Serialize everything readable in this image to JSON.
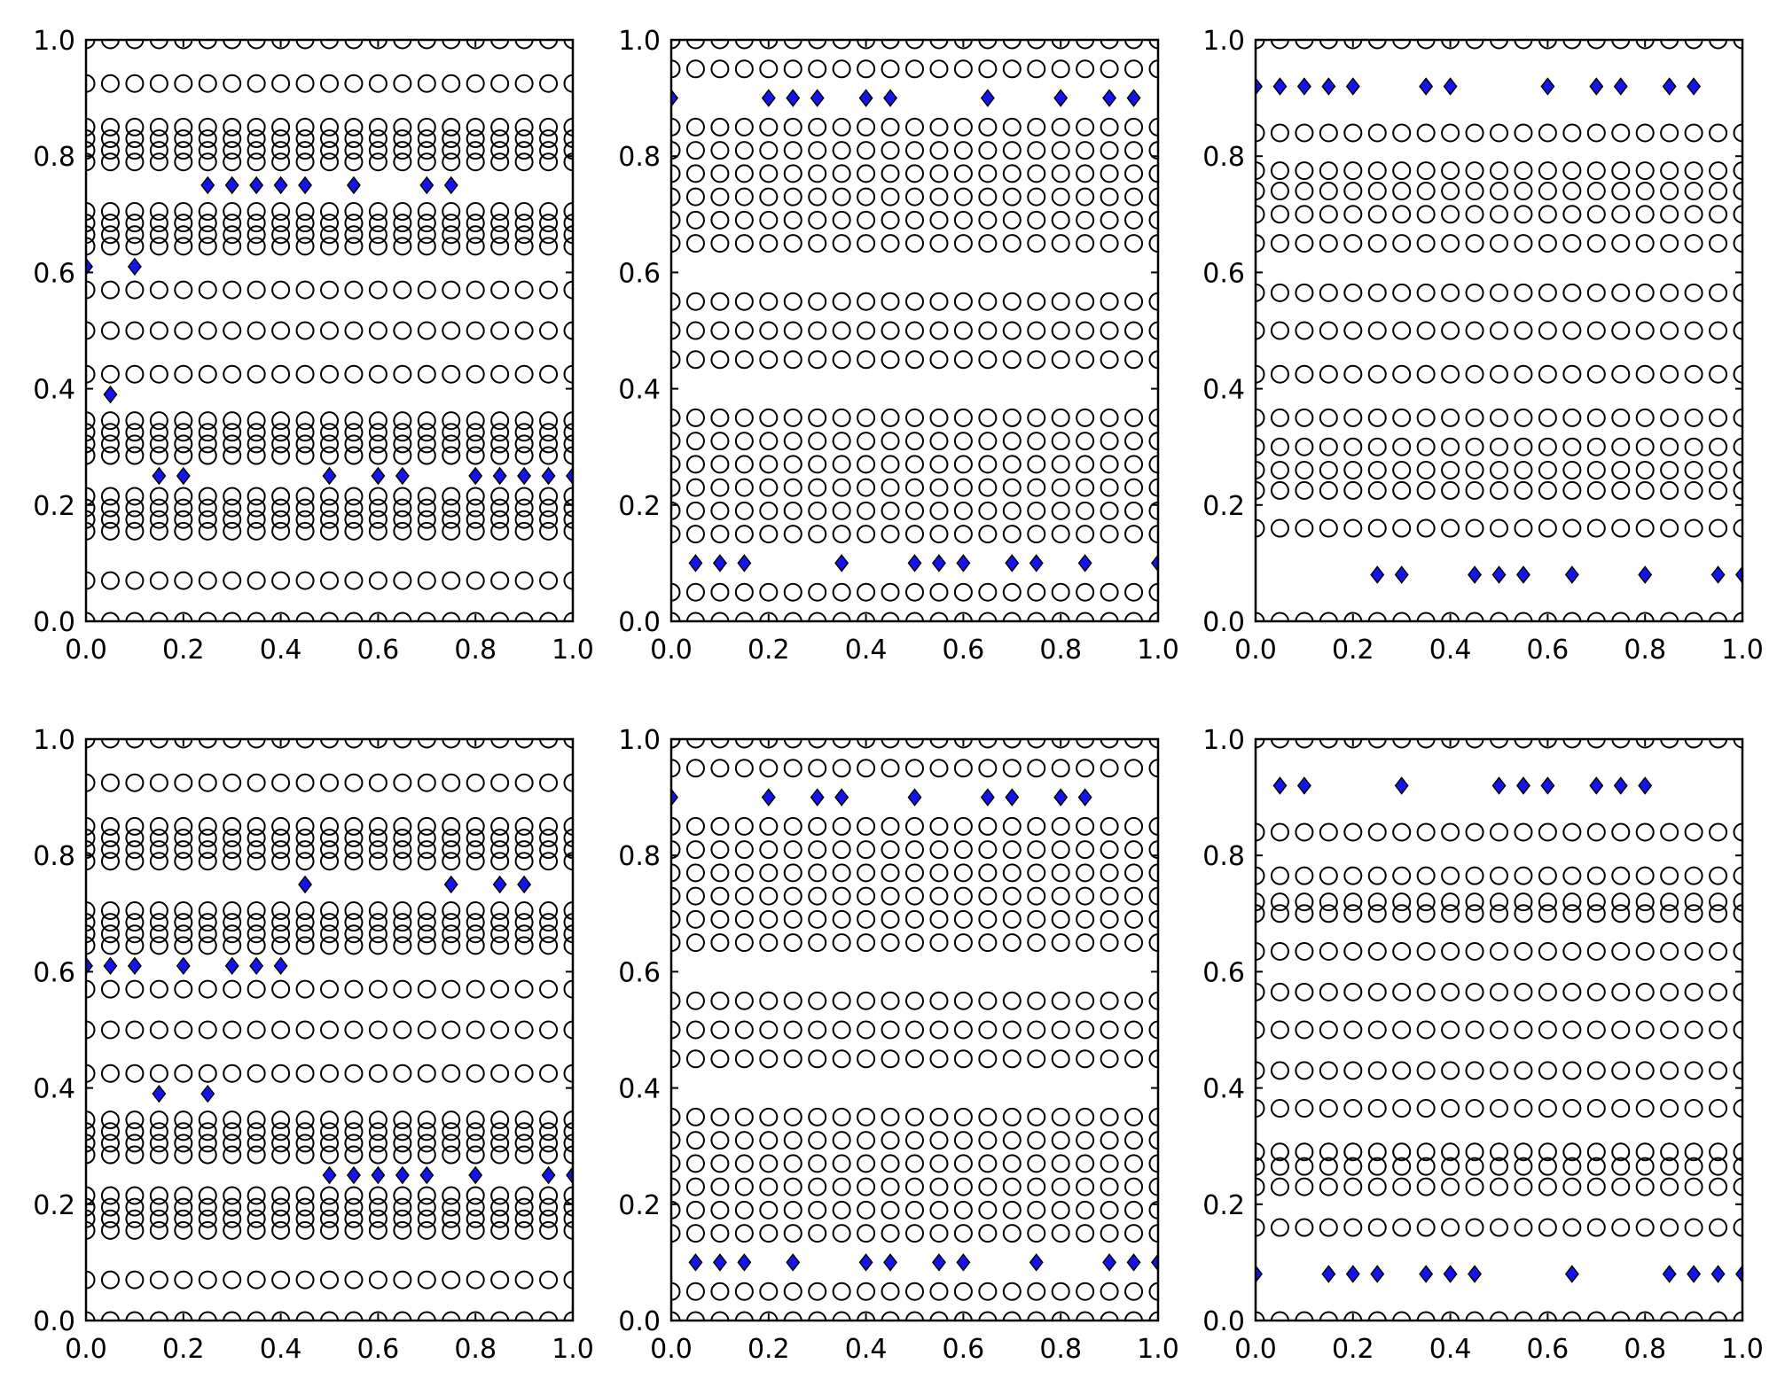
{
  "colors": {
    "diamond_fill": "#1414F0",
    "marker_stroke": "#000000",
    "background": "#FFFFFF"
  },
  "chart_data": [
    {
      "type": "scatter",
      "panel": "row1-col1",
      "xlim": [
        0,
        1
      ],
      "ylim": [
        0,
        1
      ],
      "xticks": [
        "0.0",
        "0.2",
        "0.4",
        "0.6",
        "0.8",
        "1.0"
      ],
      "yticks": [
        "0.0",
        "0.2",
        "0.4",
        "0.6",
        "0.8",
        "1.0"
      ],
      "circle_rows": [
        0.0,
        0.07,
        0.155,
        0.175,
        0.195,
        0.215,
        0.285,
        0.305,
        0.325,
        0.345,
        0.425,
        0.5,
        0.57,
        0.645,
        0.665,
        0.685,
        0.705,
        0.79,
        0.81,
        0.83,
        0.85,
        0.925,
        1.0
      ],
      "diamonds": [
        {
          "y": 0.75,
          "x": [
            0.25,
            0.3,
            0.35,
            0.4,
            0.45,
            0.55,
            0.7,
            0.75
          ]
        },
        {
          "y": 0.61,
          "x": [
            0.0,
            0.1
          ]
        },
        {
          "y": 0.39,
          "x": [
            0.05
          ]
        },
        {
          "y": 0.25,
          "x": [
            0.15,
            0.2,
            0.5,
            0.6,
            0.65,
            0.8,
            0.85,
            0.9,
            0.95,
            1.0
          ]
        }
      ]
    },
    {
      "type": "scatter",
      "panel": "row1-col2",
      "xlim": [
        0,
        1
      ],
      "ylim": [
        0,
        1
      ],
      "xticks": [
        "0.0",
        "0.2",
        "0.4",
        "0.6",
        "0.8",
        "1.0"
      ],
      "yticks": [
        "0.0",
        "0.2",
        "0.4",
        "0.6",
        "0.8",
        "1.0"
      ],
      "circle_rows": [
        0.0,
        0.05,
        0.15,
        0.19,
        0.23,
        0.27,
        0.31,
        0.35,
        0.45,
        0.5,
        0.55,
        0.65,
        0.69,
        0.73,
        0.77,
        0.81,
        0.85,
        0.95,
        1.0
      ],
      "diamonds": [
        {
          "y": 0.9,
          "x": [
            0.0,
            0.2,
            0.25,
            0.3,
            0.4,
            0.45,
            0.65,
            0.8,
            0.9,
            0.95
          ]
        },
        {
          "y": 0.1,
          "x": [
            0.05,
            0.1,
            0.15,
            0.35,
            0.5,
            0.55,
            0.6,
            0.7,
            0.75,
            0.85,
            1.0
          ]
        }
      ]
    },
    {
      "type": "scatter",
      "panel": "row1-col3",
      "xlim": [
        0,
        1
      ],
      "ylim": [
        0,
        1
      ],
      "xticks": [
        "0.0",
        "0.2",
        "0.4",
        "0.6",
        "0.8",
        "1.0"
      ],
      "yticks": [
        "0.0",
        "0.2",
        "0.4",
        "0.6",
        "0.8",
        "1.0"
      ],
      "circle_rows": [
        0.0,
        0.16,
        0.225,
        0.26,
        0.3,
        0.35,
        0.425,
        0.5,
        0.565,
        0.65,
        0.7,
        0.74,
        0.775,
        0.84,
        1.0
      ],
      "diamonds": [
        {
          "y": 0.92,
          "x": [
            0.0,
            0.05,
            0.1,
            0.15,
            0.2,
            0.35,
            0.4,
            0.6,
            0.7,
            0.75,
            0.85,
            0.9
          ]
        },
        {
          "y": 0.08,
          "x": [
            0.25,
            0.3,
            0.45,
            0.5,
            0.55,
            0.65,
            0.8,
            0.95,
            1.0
          ]
        }
      ]
    },
    {
      "type": "scatter",
      "panel": "row2-col1",
      "xlim": [
        0,
        1
      ],
      "ylim": [
        0,
        1
      ],
      "xticks": [
        "0.0",
        "0.2",
        "0.4",
        "0.6",
        "0.8",
        "1.0"
      ],
      "yticks": [
        "0.0",
        "0.2",
        "0.4",
        "0.6",
        "0.8",
        "1.0"
      ],
      "circle_rows": [
        0.0,
        0.07,
        0.155,
        0.175,
        0.195,
        0.215,
        0.285,
        0.305,
        0.325,
        0.345,
        0.425,
        0.5,
        0.57,
        0.645,
        0.665,
        0.685,
        0.705,
        0.79,
        0.81,
        0.83,
        0.85,
        0.925,
        1.0
      ],
      "diamonds": [
        {
          "y": 0.75,
          "x": [
            0.45,
            0.75,
            0.85,
            0.9
          ]
        },
        {
          "y": 0.61,
          "x": [
            0.0,
            0.05,
            0.1,
            0.2,
            0.3,
            0.35,
            0.4
          ]
        },
        {
          "y": 0.39,
          "x": [
            0.15,
            0.25
          ]
        },
        {
          "y": 0.25,
          "x": [
            0.5,
            0.55,
            0.6,
            0.65,
            0.7,
            0.8,
            0.95,
            1.0
          ]
        }
      ]
    },
    {
      "type": "scatter",
      "panel": "row2-col2",
      "xlim": [
        0,
        1
      ],
      "ylim": [
        0,
        1
      ],
      "xticks": [
        "0.0",
        "0.2",
        "0.4",
        "0.6",
        "0.8",
        "1.0"
      ],
      "yticks": [
        "0.0",
        "0.2",
        "0.4",
        "0.6",
        "0.8",
        "1.0"
      ],
      "circle_rows": [
        0.0,
        0.05,
        0.15,
        0.19,
        0.23,
        0.27,
        0.31,
        0.35,
        0.45,
        0.5,
        0.55,
        0.65,
        0.69,
        0.73,
        0.77,
        0.81,
        0.85,
        0.95,
        1.0
      ],
      "diamonds": [
        {
          "y": 0.9,
          "x": [
            0.0,
            0.2,
            0.3,
            0.35,
            0.5,
            0.65,
            0.7,
            0.8,
            0.85
          ]
        },
        {
          "y": 0.1,
          "x": [
            0.05,
            0.1,
            0.15,
            0.25,
            0.4,
            0.45,
            0.55,
            0.6,
            0.75,
            0.9,
            0.95,
            1.0
          ]
        }
      ]
    },
    {
      "type": "scatter",
      "panel": "row2-col3",
      "xlim": [
        0,
        1
      ],
      "ylim": [
        0,
        1
      ],
      "xticks": [
        "0.0",
        "0.2",
        "0.4",
        "0.6",
        "0.8",
        "1.0"
      ],
      "yticks": [
        "0.0",
        "0.2",
        "0.4",
        "0.6",
        "0.8",
        "1.0"
      ],
      "circle_rows": [
        0.0,
        0.16,
        0.23,
        0.265,
        0.29,
        0.365,
        0.43,
        0.5,
        0.565,
        0.635,
        0.7,
        0.72,
        0.765,
        0.84,
        1.0
      ],
      "diamonds": [
        {
          "y": 0.92,
          "x": [
            0.05,
            0.1,
            0.3,
            0.5,
            0.55,
            0.6,
            0.7,
            0.75,
            0.8
          ]
        },
        {
          "y": 0.08,
          "x": [
            0.0,
            0.15,
            0.2,
            0.25,
            0.35,
            0.4,
            0.45,
            0.65,
            0.85,
            0.9,
            0.95,
            1.0
          ]
        }
      ]
    }
  ]
}
